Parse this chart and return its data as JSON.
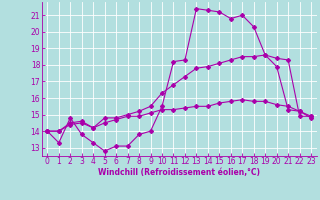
{
  "background_color": "#b2dfdf",
  "grid_color": "#ffffff",
  "line_color": "#aa00aa",
  "xlabel": "Windchill (Refroidissement éolien,°C)",
  "xlim": [
    -0.5,
    23.5
  ],
  "ylim": [
    12.5,
    21.8
  ],
  "xticks": [
    0,
    1,
    2,
    3,
    4,
    5,
    6,
    7,
    8,
    9,
    10,
    11,
    12,
    13,
    14,
    15,
    16,
    17,
    18,
    19,
    20,
    21,
    22,
    23
  ],
  "yticks": [
    13,
    14,
    15,
    16,
    17,
    18,
    19,
    20,
    21
  ],
  "curve1_x": [
    0,
    1,
    2,
    3,
    4,
    5,
    6,
    7,
    8,
    9,
    10,
    11,
    12,
    13,
    14,
    15,
    16,
    17,
    18,
    19,
    20,
    21,
    22,
    23
  ],
  "curve1_y": [
    14.0,
    13.3,
    14.8,
    13.8,
    13.3,
    12.8,
    13.1,
    13.1,
    13.8,
    14.0,
    15.5,
    18.2,
    18.3,
    21.4,
    21.3,
    21.2,
    20.8,
    21.0,
    20.3,
    18.6,
    17.9,
    15.3,
    15.2,
    14.8
  ],
  "curve2_x": [
    0,
    1,
    2,
    3,
    4,
    5,
    6,
    7,
    8,
    9,
    10,
    11,
    12,
    13,
    14,
    15,
    16,
    17,
    18,
    19,
    20,
    21,
    22,
    23
  ],
  "curve2_y": [
    14.0,
    14.0,
    14.5,
    14.6,
    14.2,
    14.8,
    14.8,
    15.0,
    15.2,
    15.5,
    16.3,
    16.8,
    17.3,
    17.8,
    17.9,
    18.1,
    18.3,
    18.5,
    18.5,
    18.6,
    18.4,
    18.3,
    14.9,
    14.9
  ],
  "curve3_x": [
    0,
    1,
    2,
    3,
    4,
    5,
    6,
    7,
    8,
    9,
    10,
    11,
    12,
    13,
    14,
    15,
    16,
    17,
    18,
    19,
    20,
    21,
    22,
    23
  ],
  "curve3_y": [
    14.0,
    14.0,
    14.4,
    14.5,
    14.2,
    14.5,
    14.7,
    14.9,
    14.9,
    15.1,
    15.3,
    15.3,
    15.4,
    15.5,
    15.5,
    15.7,
    15.8,
    15.9,
    15.8,
    15.8,
    15.6,
    15.5,
    15.2,
    14.9
  ],
  "markersize": 2.0,
  "linewidth": 0.8,
  "tick_fontsize": 5.5,
  "xlabel_fontsize": 5.5
}
